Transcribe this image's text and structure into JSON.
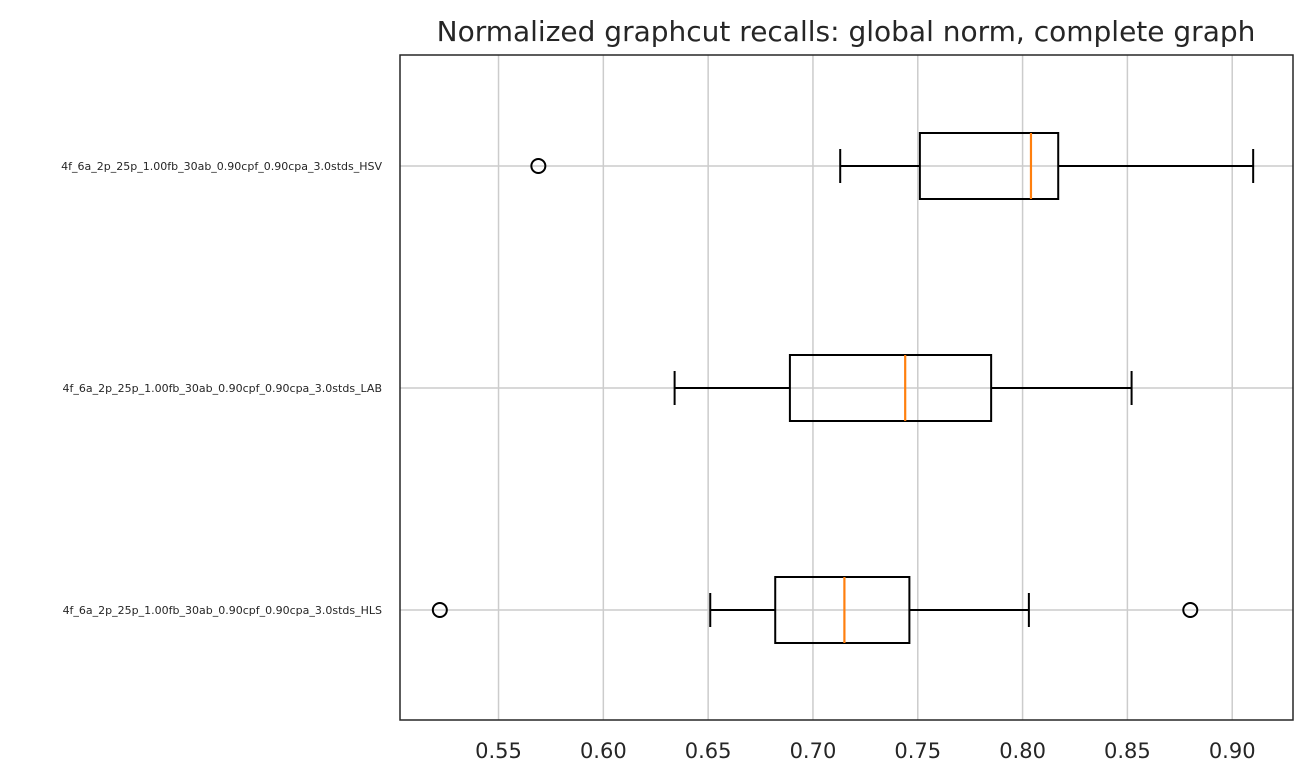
{
  "chart_data": {
    "type": "boxplot",
    "orientation": "horizontal",
    "title": "Normalized graphcut recalls: global norm, complete graph",
    "xlabel": "",
    "ylabel": "",
    "xlim": [
      0.503,
      0.929
    ],
    "xticks": [
      0.55,
      0.6,
      0.65,
      0.7,
      0.75,
      0.8,
      0.85,
      0.9
    ],
    "xtick_labels": [
      "0.55",
      "0.60",
      "0.65",
      "0.70",
      "0.75",
      "0.80",
      "0.85",
      "0.90"
    ],
    "grid": true,
    "colors": {
      "box": "#000000",
      "median": "#ff7f0e",
      "grid": "#cccccc",
      "text": "#262626"
    },
    "series": [
      {
        "name": "4f_6a_2p_25p_1.00fb_30ab_0.90cpf_0.90cpa_3.0stds_HSV",
        "whisker_low": 0.713,
        "q1": 0.751,
        "median": 0.804,
        "q3": 0.817,
        "whisker_high": 0.91,
        "outliers": [
          0.569
        ]
      },
      {
        "name": "4f_6a_2p_25p_1.00fb_30ab_0.90cpf_0.90cpa_3.0stds_LAB",
        "whisker_low": 0.634,
        "q1": 0.689,
        "median": 0.744,
        "q3": 0.785,
        "whisker_high": 0.852,
        "outliers": []
      },
      {
        "name": "4f_6a_2p_25p_1.00fb_30ab_0.90cpf_0.90cpa_3.0stds_HLS",
        "whisker_low": 0.651,
        "q1": 0.682,
        "median": 0.715,
        "q3": 0.746,
        "whisker_high": 0.803,
        "outliers": [
          0.522,
          0.88
        ]
      }
    ]
  }
}
